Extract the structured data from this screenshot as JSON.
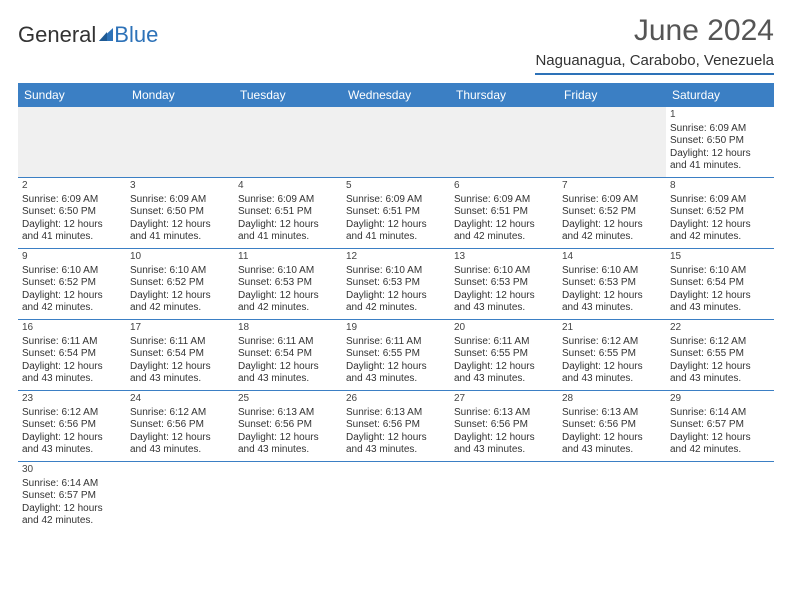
{
  "logo": {
    "left": "General",
    "right": "Blue",
    "sail_color": "#2d72b8"
  },
  "title": "June 2024",
  "location": "Naguanagua, Carabobo, Venezuela",
  "colors": {
    "header_bar": "#3b7fc4",
    "header_text": "#ffffff",
    "grid_line": "#3b7fc4",
    "empty_fill": "#f0f0f0",
    "text": "#333333",
    "title_text": "#555555"
  },
  "day_headers": [
    "Sunday",
    "Monday",
    "Tuesday",
    "Wednesday",
    "Thursday",
    "Friday",
    "Saturday"
  ],
  "weeks": [
    [
      {
        "empty": true
      },
      {
        "empty": true
      },
      {
        "empty": true
      },
      {
        "empty": true
      },
      {
        "empty": true
      },
      {
        "empty": true
      },
      {
        "day": "1",
        "sunrise": "Sunrise: 6:09 AM",
        "sunset": "Sunset: 6:50 PM",
        "daylight1": "Daylight: 12 hours",
        "daylight2": "and 41 minutes."
      }
    ],
    [
      {
        "day": "2",
        "sunrise": "Sunrise: 6:09 AM",
        "sunset": "Sunset: 6:50 PM",
        "daylight1": "Daylight: 12 hours",
        "daylight2": "and 41 minutes."
      },
      {
        "day": "3",
        "sunrise": "Sunrise: 6:09 AM",
        "sunset": "Sunset: 6:50 PM",
        "daylight1": "Daylight: 12 hours",
        "daylight2": "and 41 minutes."
      },
      {
        "day": "4",
        "sunrise": "Sunrise: 6:09 AM",
        "sunset": "Sunset: 6:51 PM",
        "daylight1": "Daylight: 12 hours",
        "daylight2": "and 41 minutes."
      },
      {
        "day": "5",
        "sunrise": "Sunrise: 6:09 AM",
        "sunset": "Sunset: 6:51 PM",
        "daylight1": "Daylight: 12 hours",
        "daylight2": "and 41 minutes."
      },
      {
        "day": "6",
        "sunrise": "Sunrise: 6:09 AM",
        "sunset": "Sunset: 6:51 PM",
        "daylight1": "Daylight: 12 hours",
        "daylight2": "and 42 minutes."
      },
      {
        "day": "7",
        "sunrise": "Sunrise: 6:09 AM",
        "sunset": "Sunset: 6:52 PM",
        "daylight1": "Daylight: 12 hours",
        "daylight2": "and 42 minutes."
      },
      {
        "day": "8",
        "sunrise": "Sunrise: 6:09 AM",
        "sunset": "Sunset: 6:52 PM",
        "daylight1": "Daylight: 12 hours",
        "daylight2": "and 42 minutes."
      }
    ],
    [
      {
        "day": "9",
        "sunrise": "Sunrise: 6:10 AM",
        "sunset": "Sunset: 6:52 PM",
        "daylight1": "Daylight: 12 hours",
        "daylight2": "and 42 minutes."
      },
      {
        "day": "10",
        "sunrise": "Sunrise: 6:10 AM",
        "sunset": "Sunset: 6:52 PM",
        "daylight1": "Daylight: 12 hours",
        "daylight2": "and 42 minutes."
      },
      {
        "day": "11",
        "sunrise": "Sunrise: 6:10 AM",
        "sunset": "Sunset: 6:53 PM",
        "daylight1": "Daylight: 12 hours",
        "daylight2": "and 42 minutes."
      },
      {
        "day": "12",
        "sunrise": "Sunrise: 6:10 AM",
        "sunset": "Sunset: 6:53 PM",
        "daylight1": "Daylight: 12 hours",
        "daylight2": "and 42 minutes."
      },
      {
        "day": "13",
        "sunrise": "Sunrise: 6:10 AM",
        "sunset": "Sunset: 6:53 PM",
        "daylight1": "Daylight: 12 hours",
        "daylight2": "and 43 minutes."
      },
      {
        "day": "14",
        "sunrise": "Sunrise: 6:10 AM",
        "sunset": "Sunset: 6:53 PM",
        "daylight1": "Daylight: 12 hours",
        "daylight2": "and 43 minutes."
      },
      {
        "day": "15",
        "sunrise": "Sunrise: 6:10 AM",
        "sunset": "Sunset: 6:54 PM",
        "daylight1": "Daylight: 12 hours",
        "daylight2": "and 43 minutes."
      }
    ],
    [
      {
        "day": "16",
        "sunrise": "Sunrise: 6:11 AM",
        "sunset": "Sunset: 6:54 PM",
        "daylight1": "Daylight: 12 hours",
        "daylight2": "and 43 minutes."
      },
      {
        "day": "17",
        "sunrise": "Sunrise: 6:11 AM",
        "sunset": "Sunset: 6:54 PM",
        "daylight1": "Daylight: 12 hours",
        "daylight2": "and 43 minutes."
      },
      {
        "day": "18",
        "sunrise": "Sunrise: 6:11 AM",
        "sunset": "Sunset: 6:54 PM",
        "daylight1": "Daylight: 12 hours",
        "daylight2": "and 43 minutes."
      },
      {
        "day": "19",
        "sunrise": "Sunrise: 6:11 AM",
        "sunset": "Sunset: 6:55 PM",
        "daylight1": "Daylight: 12 hours",
        "daylight2": "and 43 minutes."
      },
      {
        "day": "20",
        "sunrise": "Sunrise: 6:11 AM",
        "sunset": "Sunset: 6:55 PM",
        "daylight1": "Daylight: 12 hours",
        "daylight2": "and 43 minutes."
      },
      {
        "day": "21",
        "sunrise": "Sunrise: 6:12 AM",
        "sunset": "Sunset: 6:55 PM",
        "daylight1": "Daylight: 12 hours",
        "daylight2": "and 43 minutes."
      },
      {
        "day": "22",
        "sunrise": "Sunrise: 6:12 AM",
        "sunset": "Sunset: 6:55 PM",
        "daylight1": "Daylight: 12 hours",
        "daylight2": "and 43 minutes."
      }
    ],
    [
      {
        "day": "23",
        "sunrise": "Sunrise: 6:12 AM",
        "sunset": "Sunset: 6:56 PM",
        "daylight1": "Daylight: 12 hours",
        "daylight2": "and 43 minutes."
      },
      {
        "day": "24",
        "sunrise": "Sunrise: 6:12 AM",
        "sunset": "Sunset: 6:56 PM",
        "daylight1": "Daylight: 12 hours",
        "daylight2": "and 43 minutes."
      },
      {
        "day": "25",
        "sunrise": "Sunrise: 6:13 AM",
        "sunset": "Sunset: 6:56 PM",
        "daylight1": "Daylight: 12 hours",
        "daylight2": "and 43 minutes."
      },
      {
        "day": "26",
        "sunrise": "Sunrise: 6:13 AM",
        "sunset": "Sunset: 6:56 PM",
        "daylight1": "Daylight: 12 hours",
        "daylight2": "and 43 minutes."
      },
      {
        "day": "27",
        "sunrise": "Sunrise: 6:13 AM",
        "sunset": "Sunset: 6:56 PM",
        "daylight1": "Daylight: 12 hours",
        "daylight2": "and 43 minutes."
      },
      {
        "day": "28",
        "sunrise": "Sunrise: 6:13 AM",
        "sunset": "Sunset: 6:56 PM",
        "daylight1": "Daylight: 12 hours",
        "daylight2": "and 43 minutes."
      },
      {
        "day": "29",
        "sunrise": "Sunrise: 6:14 AM",
        "sunset": "Sunset: 6:57 PM",
        "daylight1": "Daylight: 12 hours",
        "daylight2": "and 42 minutes."
      }
    ],
    [
      {
        "day": "30",
        "sunrise": "Sunrise: 6:14 AM",
        "sunset": "Sunset: 6:57 PM",
        "daylight1": "Daylight: 12 hours",
        "daylight2": "and 42 minutes."
      },
      {
        "empty": true,
        "plain": true
      },
      {
        "empty": true,
        "plain": true
      },
      {
        "empty": true,
        "plain": true
      },
      {
        "empty": true,
        "plain": true
      },
      {
        "empty": true,
        "plain": true
      },
      {
        "empty": true,
        "plain": true
      }
    ]
  ]
}
